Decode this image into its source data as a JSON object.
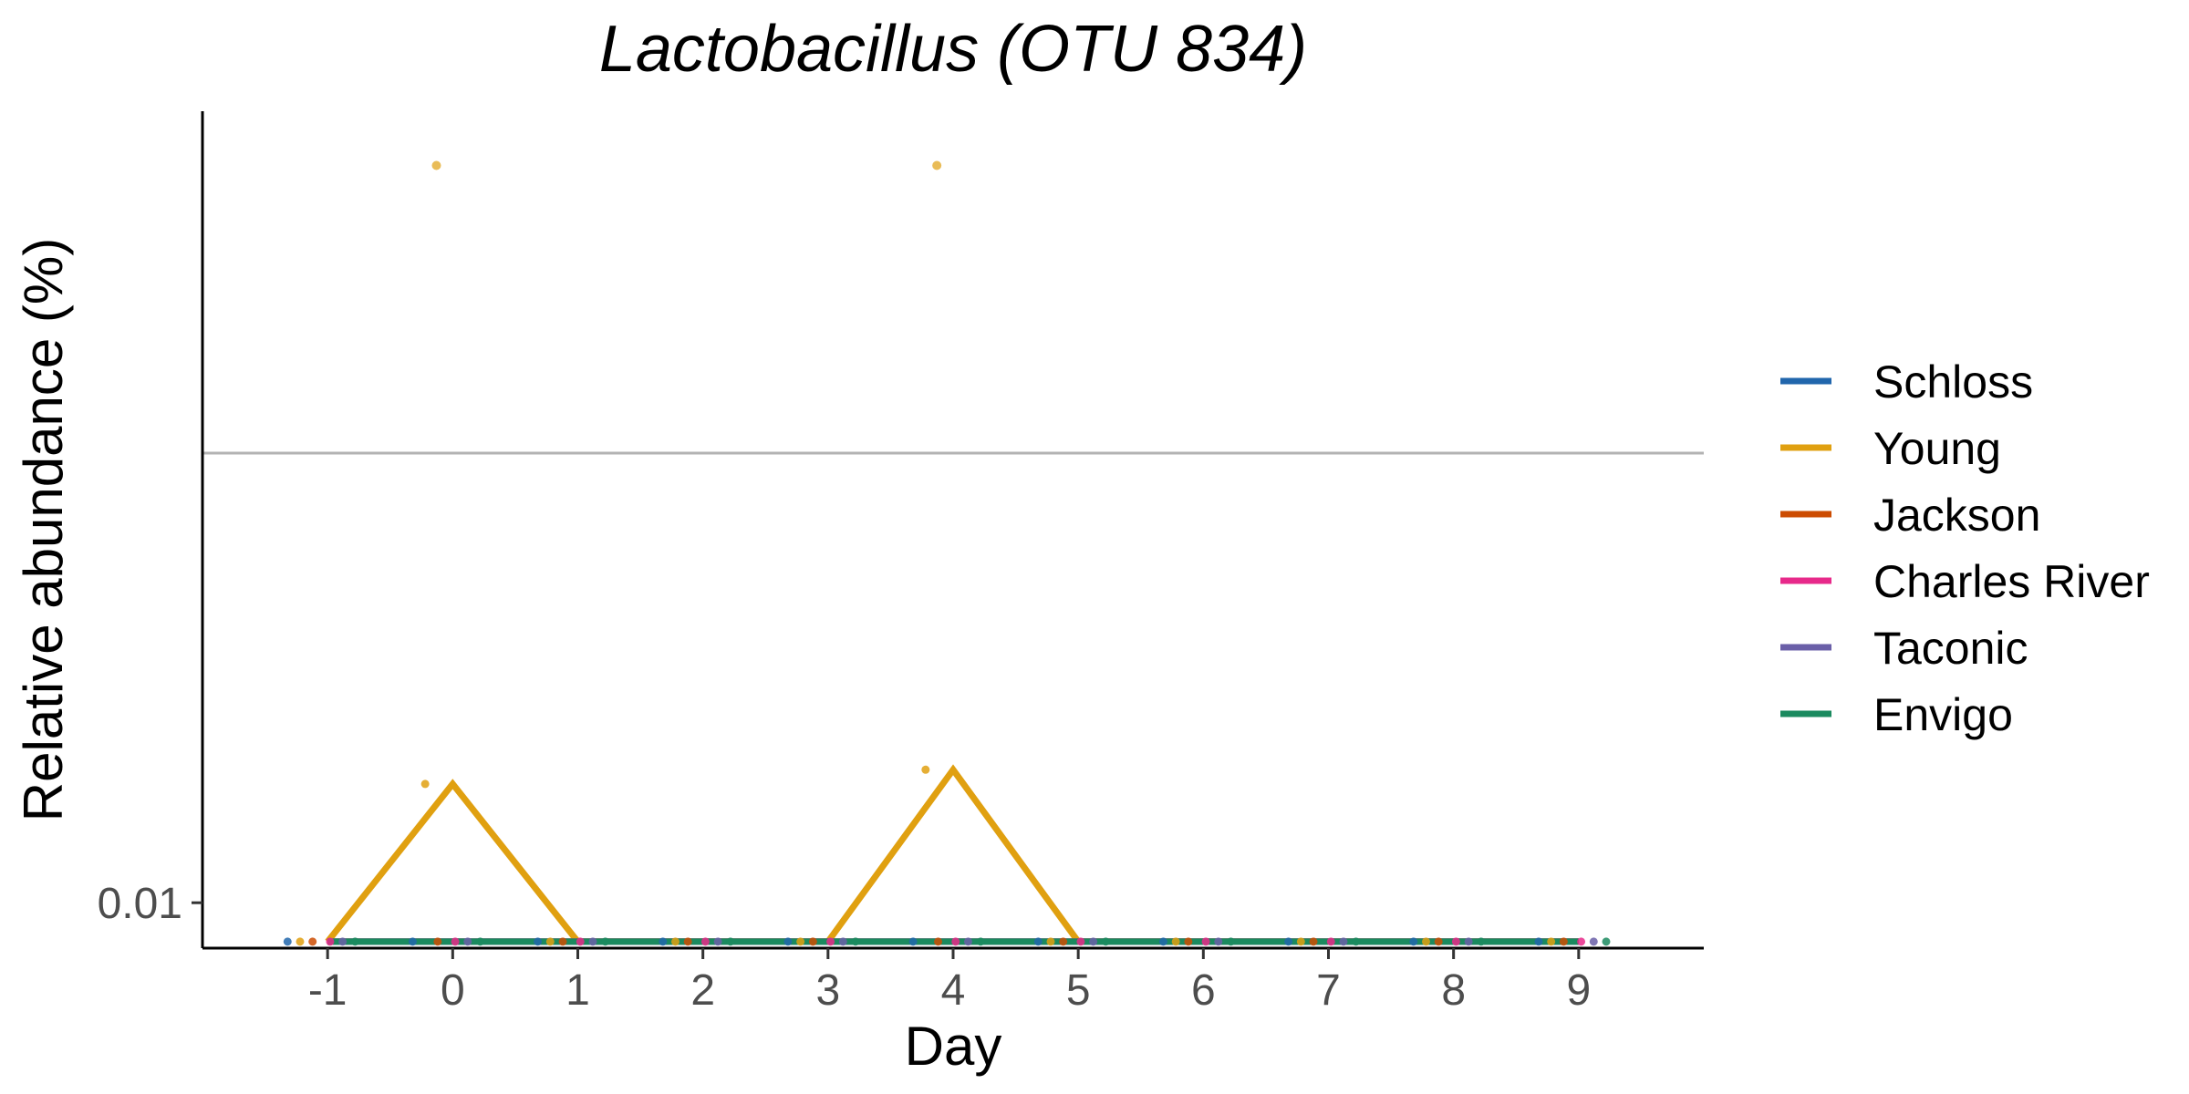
{
  "chart_data": {
    "type": "line",
    "title": "Lactobacillus (OTU 834)",
    "xlabel": "Day",
    "ylabel": "Relative abundance (%)",
    "x_ticks": [
      -1,
      0,
      1,
      2,
      3,
      4,
      5,
      6,
      7,
      8,
      9
    ],
    "x_tick_labels": [
      "-1",
      "0",
      "1",
      "2",
      "3",
      "4",
      "5",
      "6",
      "7",
      "8",
      "9"
    ],
    "xlim": [
      -2,
      10
    ],
    "y_scale": "log10",
    "y_ticks": [
      0.01
    ],
    "y_tick_labels": [
      "0.01"
    ],
    "ylim": [
      0.0085,
      0.17
    ],
    "reference_line": {
      "y": 0.05,
      "color": "#b3b3b3"
    },
    "grid": false,
    "legend_position": "right",
    "series": [
      {
        "name": "Schloss",
        "color": "#2166ac",
        "x": [
          -1,
          0,
          1,
          2,
          3,
          4,
          5,
          6,
          7,
          8,
          9
        ],
        "y": [
          0.0087,
          0.0087,
          0.0087,
          0.0087,
          0.0087,
          0.0087,
          0.0087,
          0.0087,
          0.0087,
          0.0087,
          0.0087
        ]
      },
      {
        "name": "Young",
        "color": "#e0a010",
        "x": [
          -1,
          0,
          1,
          2,
          3,
          4,
          5,
          6,
          7,
          8,
          9
        ],
        "y": [
          0.0087,
          0.0153,
          0.0087,
          0.0087,
          0.0087,
          0.0161,
          0.0087,
          0.0087,
          0.0087,
          0.0087,
          0.0087
        ]
      },
      {
        "name": "Jackson",
        "color": "#cc4c02",
        "x": [
          -1,
          0,
          1,
          2,
          3,
          4,
          5,
          6,
          7,
          8,
          9
        ],
        "y": [
          0.0087,
          0.0087,
          0.0087,
          0.0087,
          0.0087,
          0.0087,
          0.0087,
          0.0087,
          0.0087,
          0.0087,
          0.0087
        ]
      },
      {
        "name": "Charles River",
        "color": "#e7298a",
        "x": [
          -1,
          0,
          1,
          2,
          3,
          4,
          5,
          6,
          7,
          8,
          9
        ],
        "y": [
          0.0087,
          0.0087,
          0.0087,
          0.0087,
          0.0087,
          0.0087,
          0.0087,
          0.0087,
          0.0087,
          0.0087,
          0.0087
        ]
      },
      {
        "name": "Taconic",
        "color": "#6a5fa8",
        "x": [
          -1,
          0,
          1,
          2,
          3,
          4,
          5,
          6,
          7,
          8,
          9
        ],
        "y": [
          0.0087,
          0.0087,
          0.0087,
          0.0087,
          0.0087,
          0.0087,
          0.0087,
          0.0087,
          0.0087,
          0.0087,
          0.0087
        ]
      },
      {
        "name": "Envigo",
        "color": "#1b8a5f",
        "x": [
          -1,
          0,
          1,
          2,
          3,
          4,
          5,
          6,
          7,
          8,
          9
        ],
        "y": [
          0.0087,
          0.0087,
          0.0087,
          0.0087,
          0.0087,
          0.0087,
          0.0087,
          0.0087,
          0.0087,
          0.0087,
          0.0087
        ]
      }
    ],
    "outlier_points": [
      {
        "series": "Young",
        "x": -0.13,
        "y": 0.14
      },
      {
        "series": "Young",
        "x": 3.87,
        "y": 0.14
      }
    ]
  }
}
